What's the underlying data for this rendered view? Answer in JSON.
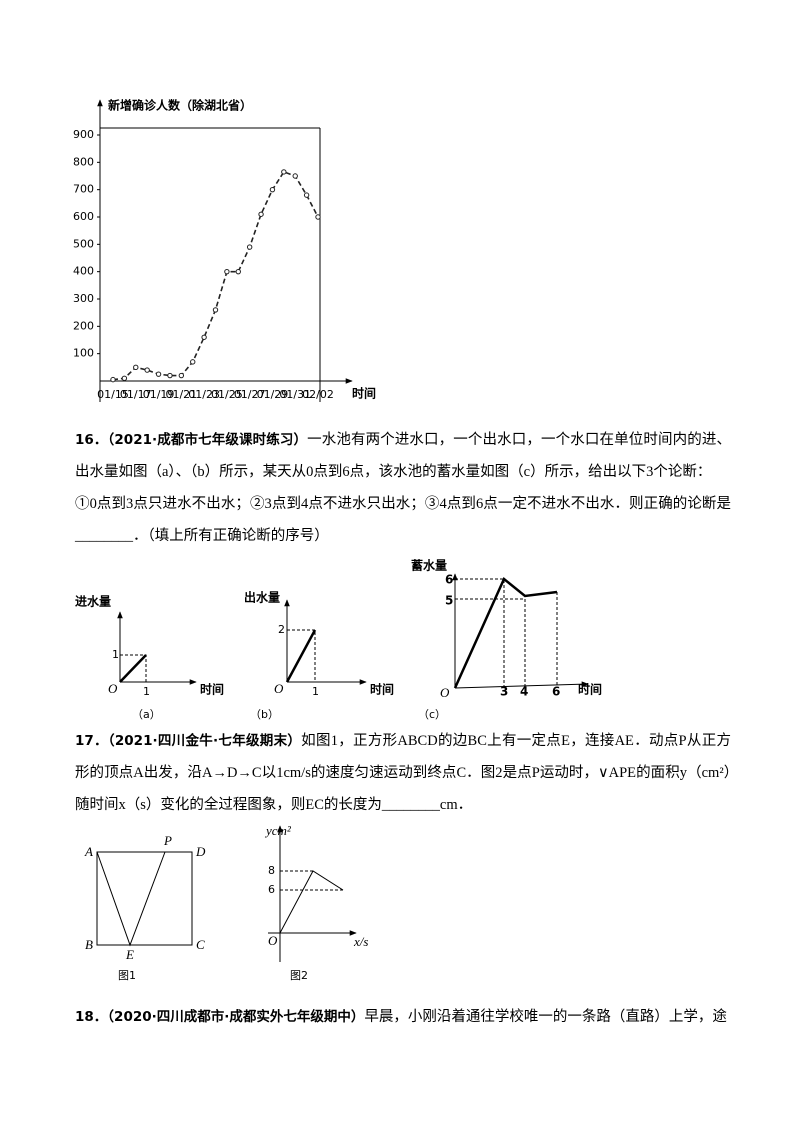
{
  "chart_data": {
    "type": "line",
    "y_axis_label": "新增确诊人数（除湖北省）",
    "x_axis_label": "时间",
    "categories": [
      "01/15",
      null,
      "01/17",
      null,
      "01/19",
      null,
      "01/21",
      null,
      "01/23",
      null,
      "01/25",
      null,
      "01/27",
      null,
      "01/29",
      null,
      "01/31",
      null,
      "02/02"
    ],
    "values": [
      5,
      10,
      50,
      40,
      25,
      20,
      20,
      70,
      160,
      260,
      400,
      400,
      490,
      610,
      700,
      765,
      750,
      680,
      600
    ],
    "color": "#222222",
    "ylim": [
      0,
      900
    ],
    "yticks": [
      100,
      200,
      300,
      400,
      500,
      600,
      700,
      800,
      900
    ]
  },
  "questions": [
    {
      "number": "16．",
      "source": "（2021·成都市七年级课时练习）",
      "text": "一水池有两个进水口，一个出水口，一个水口在单位时间内的进、出水量如图（a）、（b）所示，某天从0点到6点，该水池的蓄水量如图（c）所示，给出以下3个论断：",
      "statements": "①0点到3点只进水不出水；②3点到4点不进水只出水；③4点到6点一定不进水不出水．则正确的论断是________．（填上所有正确论断的序号）",
      "figures": {
        "a": {
          "y_label": "进水量",
          "origin": "O",
          "y_tick": "1",
          "x_tick": "1",
          "x_label": "时间",
          "caption": "（a）"
        },
        "b": {
          "y_label": "出水量",
          "origin": "O",
          "y_tick": "2",
          "x_tick": "1",
          "x_label": "时间",
          "caption": "（b）"
        },
        "c": {
          "y_label": "蓄水量",
          "origin": "O",
          "y_ticks": [
            "6",
            "5"
          ],
          "x_ticks": [
            "3",
            "4",
            "6"
          ],
          "x_label": "时间",
          "caption": "（c）"
        }
      }
    },
    {
      "number": "17．",
      "source": "（2021·四川金牛·七年级期末）",
      "text": "如图1，正方形ABCD的边BC上有一定点E，连接AE．动点P从正方形的顶点A出发，沿A→D→C以1cm/s的速度匀速运动到终点C．图2是点P运动时，∨APE的面积y（cm²）随时间x（s）变化的全过程图象，则EC的长度为________cm．",
      "figures": {
        "fig1": {
          "points": [
            "A",
            "P",
            "D",
            "B",
            "E",
            "C"
          ],
          "caption": "图1"
        },
        "fig2": {
          "y_label": "ycm²",
          "y_ticks": [
            "8",
            "6"
          ],
          "origin": "O",
          "x_label": "x/s",
          "caption": "图2"
        }
      }
    },
    {
      "number": "18．",
      "source": "（2020·四川成都市·成都实外七年级期中）",
      "text": "早晨，小刚沿着通往学校唯一的一条路（直路）上学，途"
    }
  ]
}
